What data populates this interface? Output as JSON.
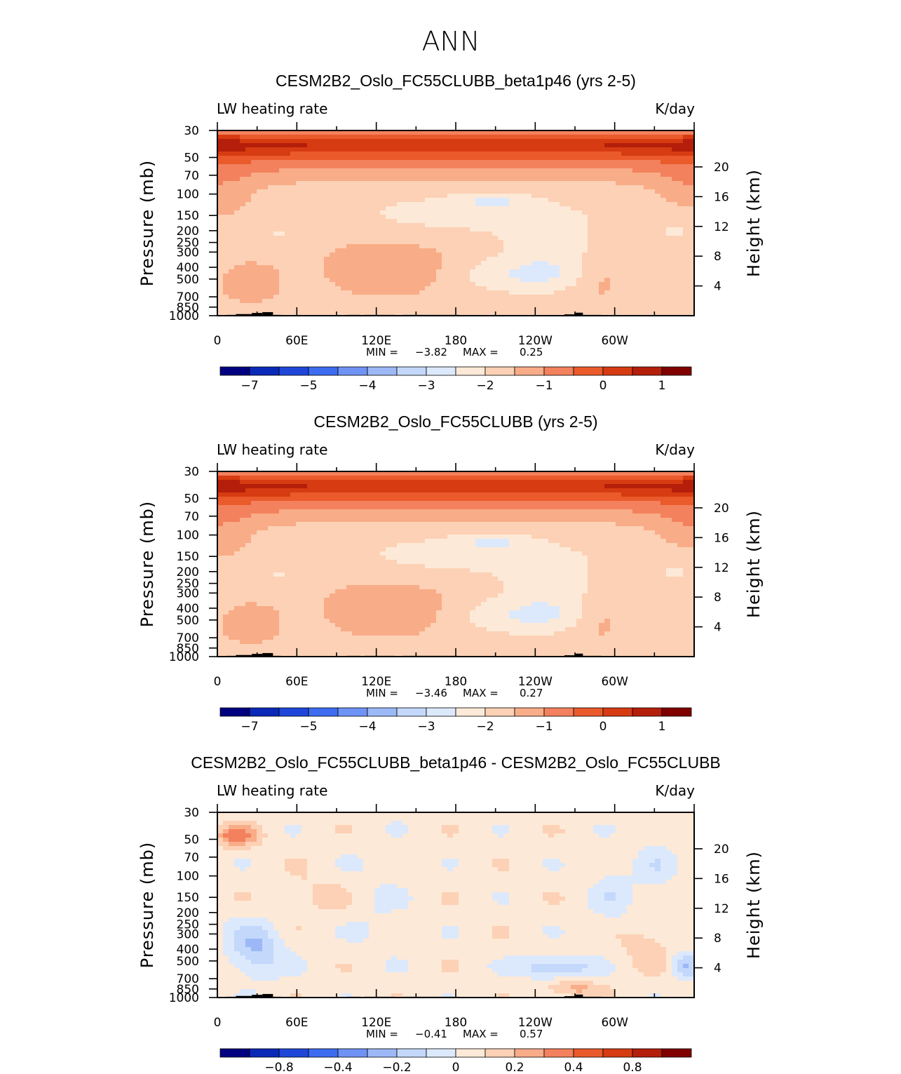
{
  "figure_title": "ANN",
  "color_ramp": [
    "#000080",
    "#0a29b8",
    "#1e47d9",
    "#3d6cf0",
    "#6f93f5",
    "#9cb8f7",
    "#c3d8fb",
    "#dce9fc",
    "#fde9d7",
    "#fcd1b5",
    "#f9ac88",
    "#f3815d",
    "#ea5a2b",
    "#d73b12",
    "#b41e0a",
    "#800000"
  ],
  "chart_data": [
    {
      "type": "heatmap",
      "title": "CESM2B2_Oslo_FC55CLUBB_beta1p46 (yrs 2-5)",
      "variable_label": "LW heating rate",
      "units_label": "K/day",
      "ylabel_left": "Pressure (mb)",
      "ylabel_right": "Height (km)",
      "pressure_ticks": [
        "30",
        "50",
        "70",
        "100",
        "150",
        "200",
        "250",
        "300",
        "400",
        "500",
        "700",
        "850",
        "1000"
      ],
      "height_ticks": [
        "20",
        "16",
        "12",
        "8",
        "4"
      ],
      "x_ticks": [
        "0",
        "60E",
        "120E",
        "180",
        "120W",
        "60W"
      ],
      "min_label": "MIN =",
      "min_value": "−3.82",
      "max_label": "MAX =",
      "max_value": "0.25",
      "colorbar_labels": [
        "−7",
        "−5",
        "−4",
        "−3",
        "−2",
        "−1",
        "0",
        "1"
      ],
      "minimum": -3.82,
      "maximum": 0.25,
      "pattern": "control"
    },
    {
      "type": "heatmap",
      "title": "CESM2B2_Oslo_FC55CLUBB (yrs 2-5)",
      "variable_label": "LW heating rate",
      "units_label": "K/day",
      "ylabel_left": "Pressure (mb)",
      "ylabel_right": "Height (km)",
      "pressure_ticks": [
        "30",
        "50",
        "70",
        "100",
        "150",
        "200",
        "250",
        "300",
        "400",
        "500",
        "700",
        "850",
        "1000"
      ],
      "height_ticks": [
        "20",
        "16",
        "12",
        "8",
        "4"
      ],
      "x_ticks": [
        "0",
        "60E",
        "120E",
        "180",
        "120W",
        "60W"
      ],
      "min_label": "MIN =",
      "min_value": "−3.46",
      "max_label": "MAX =",
      "max_value": "0.27",
      "colorbar_labels": [
        "−7",
        "−5",
        "−4",
        "−3",
        "−2",
        "−1",
        "0",
        "1"
      ],
      "minimum": -3.46,
      "maximum": 0.27,
      "pattern": "control"
    },
    {
      "type": "heatmap",
      "title": "CESM2B2_Oslo_FC55CLUBB_beta1p46 - CESM2B2_Oslo_FC55CLUBB",
      "variable_label": "LW heating rate",
      "units_label": "K/day",
      "ylabel_left": "Pressure (mb)",
      "ylabel_right": "Height (km)",
      "pressure_ticks": [
        "30",
        "50",
        "70",
        "100",
        "150",
        "200",
        "250",
        "300",
        "400",
        "500",
        "700",
        "850",
        "1000"
      ],
      "height_ticks": [
        "20",
        "16",
        "12",
        "8",
        "4"
      ],
      "x_ticks": [
        "0",
        "60E",
        "120E",
        "180",
        "120W",
        "60W"
      ],
      "min_label": "MIN =",
      "min_value": "−0.41",
      "max_label": "MAX =",
      "max_value": "0.57",
      "colorbar_labels": [
        "−0.8",
        "−0.4",
        "−0.2",
        "0",
        "0.2",
        "0.4",
        "0.8"
      ],
      "minimum": -0.41,
      "maximum": 0.57,
      "pattern": "difference"
    }
  ]
}
